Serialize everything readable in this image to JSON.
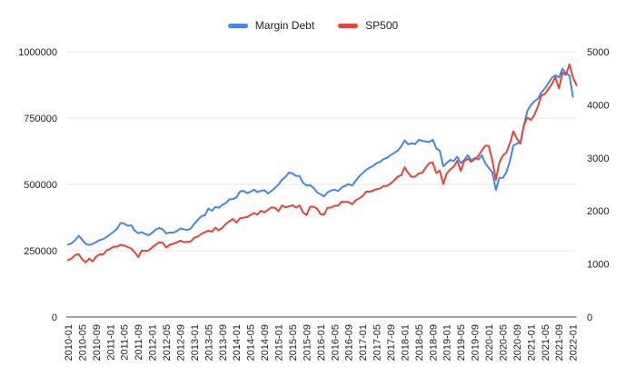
{
  "legend": {
    "items": [
      {
        "label": "Margin Debt",
        "color": "#4285F4"
      },
      {
        "label": "SP500",
        "color": "#EA4335"
      }
    ]
  },
  "colors": {
    "background": "#FFFFFF",
    "gridline": "#E6E6E6",
    "baseline": "#4A4A4A",
    "axis_text": "#212121",
    "margin_debt_line": "#4285F4",
    "sp500_line": "#EA4335"
  },
  "chart_data": {
    "type": "line",
    "title": "",
    "xlabel": "",
    "ylabel_left": "",
    "ylabel_right": "",
    "grid": "horizontal",
    "legend_position": "top",
    "x": [
      "2010-01",
      "2010-02",
      "2010-03",
      "2010-04",
      "2010-05",
      "2010-06",
      "2010-07",
      "2010-08",
      "2010-09",
      "2010-10",
      "2010-11",
      "2010-12",
      "2011-01",
      "2011-02",
      "2011-03",
      "2011-04",
      "2011-05",
      "2011-06",
      "2011-07",
      "2011-08",
      "2011-09",
      "2011-10",
      "2011-11",
      "2011-12",
      "2012-01",
      "2012-02",
      "2012-03",
      "2012-04",
      "2012-05",
      "2012-06",
      "2012-07",
      "2012-08",
      "2012-09",
      "2012-10",
      "2012-11",
      "2012-12",
      "2013-01",
      "2013-02",
      "2013-03",
      "2013-04",
      "2013-05",
      "2013-06",
      "2013-07",
      "2013-08",
      "2013-09",
      "2013-10",
      "2013-11",
      "2013-12",
      "2014-01",
      "2014-02",
      "2014-03",
      "2014-04",
      "2014-05",
      "2014-06",
      "2014-07",
      "2014-08",
      "2014-09",
      "2014-10",
      "2014-11",
      "2014-12",
      "2015-01",
      "2015-02",
      "2015-03",
      "2015-04",
      "2015-05",
      "2015-06",
      "2015-07",
      "2015-08",
      "2015-09",
      "2015-10",
      "2015-11",
      "2015-12",
      "2016-01",
      "2016-02",
      "2016-03",
      "2016-04",
      "2016-05",
      "2016-06",
      "2016-07",
      "2016-08",
      "2016-09",
      "2016-10",
      "2016-11",
      "2016-12",
      "2017-01",
      "2017-02",
      "2017-03",
      "2017-04",
      "2017-05",
      "2017-06",
      "2017-07",
      "2017-08",
      "2017-09",
      "2017-10",
      "2017-11",
      "2017-12",
      "2018-01",
      "2018-02",
      "2018-03",
      "2018-04",
      "2018-05",
      "2018-06",
      "2018-07",
      "2018-08",
      "2018-09",
      "2018-10",
      "2018-11",
      "2018-12",
      "2019-01",
      "2019-02",
      "2019-03",
      "2019-04",
      "2019-05",
      "2019-06",
      "2019-07",
      "2019-08",
      "2019-09",
      "2019-10",
      "2019-11",
      "2019-12",
      "2020-01",
      "2020-02",
      "2020-03",
      "2020-04",
      "2020-05",
      "2020-06",
      "2020-07",
      "2020-08",
      "2020-09",
      "2020-10",
      "2020-11",
      "2020-12",
      "2021-01",
      "2021-02",
      "2021-03",
      "2021-04",
      "2021-05",
      "2021-06",
      "2021-07",
      "2021-08",
      "2021-09",
      "2021-10",
      "2021-11",
      "2021-12",
      "2022-01",
      "2022-02"
    ],
    "x_tick_every": 4,
    "left_axis": {
      "min": 0,
      "max": 1000000,
      "tick_values": [
        0,
        250000,
        500000,
        750000,
        1000000
      ],
      "tick_labels": [
        "0",
        "250000",
        "500000",
        "750000",
        "1000000"
      ]
    },
    "right_axis": {
      "min": 0,
      "max": 5000,
      "tick_values": [
        0,
        1000,
        2000,
        3000,
        4000,
        5000
      ],
      "tick_labels": [
        "0",
        "1000",
        "2000",
        "3000",
        "4000",
        "5000"
      ]
    },
    "series": [
      {
        "name": "Margin Debt",
        "axis": "left",
        "color": "#4285F4",
        "values": [
          273000,
          278000,
          290000,
          306000,
          292000,
          276000,
          272000,
          276000,
          283000,
          290000,
          294000,
          302000,
          312000,
          322000,
          334000,
          355000,
          352000,
          344000,
          346000,
          326000,
          316000,
          320000,
          313000,
          308000,
          318000,
          330000,
          336000,
          330000,
          315000,
          319000,
          318000,
          324000,
          334000,
          331000,
          328000,
          334000,
          352000,
          366000,
          380000,
          384000,
          409000,
          401000,
          415000,
          412000,
          423000,
          430000,
          444000,
          445000,
          451000,
          473000,
          476000,
          467000,
          472000,
          480000,
          471000,
          476000,
          478000,
          466000,
          475000,
          487000,
          499000,
          518000,
          528000,
          545000,
          541000,
          532000,
          532000,
          506000,
          496000,
          498000,
          487000,
          470000,
          463000,
          455000,
          470000,
          477000,
          480000,
          475000,
          488000,
          495000,
          501000,
          496000,
          513000,
          530000,
          542000,
          555000,
          563000,
          570000,
          580000,
          585000,
          596000,
          600000,
          611000,
          619000,
          627000,
          643000,
          666000,
          651000,
          655000,
          652000,
          668000,
          664000,
          662000,
          660000,
          668000,
          636000,
          627000,
          568000,
          580000,
          592000,
          588000,
          604000,
          580000,
          592000,
          610000,
          590000,
          600000,
          594000,
          610000,
          579000,
          562000,
          545000,
          479000,
          525000,
          525000,
          546000,
          588000,
          646000,
          654000,
          659000,
          722000,
          778000,
          799000,
          814000,
          823000,
          847000,
          862000,
          882000,
          902000,
          911000,
          903000,
          936000,
          919000,
          911000,
          830000,
          null
        ]
      },
      {
        "name": "SP500",
        "axis": "right",
        "color": "#EA4335",
        "values": [
          1073.9,
          1104.5,
          1169.4,
          1186.7,
          1089.4,
          1030.7,
          1101.6,
          1049.3,
          1141.2,
          1183.3,
          1180.6,
          1257.6,
          1286.1,
          1327.2,
          1325.8,
          1363.6,
          1345.2,
          1320.6,
          1292.3,
          1218.9,
          1131.4,
          1253.3,
          1247.0,
          1257.6,
          1312.4,
          1365.7,
          1408.5,
          1397.9,
          1310.3,
          1362.2,
          1379.3,
          1406.6,
          1440.7,
          1412.2,
          1416.2,
          1426.2,
          1498.1,
          1514.7,
          1569.2,
          1597.6,
          1630.7,
          1606.3,
          1685.7,
          1633.0,
          1681.6,
          1756.5,
          1805.8,
          1848.4,
          1782.6,
          1859.5,
          1872.3,
          1884.0,
          1923.6,
          1960.2,
          1930.7,
          2003.4,
          1972.3,
          2018.1,
          2067.6,
          2058.9,
          1995.0,
          2104.5,
          2067.9,
          2085.5,
          2107.4,
          2063.1,
          2103.8,
          1972.2,
          1920.0,
          2079.4,
          2080.4,
          2043.9,
          1940.2,
          1932.2,
          2059.7,
          2065.3,
          2097.0,
          2098.9,
          2173.6,
          2171.0,
          2168.3,
          2126.2,
          2198.8,
          2238.8,
          2278.9,
          2363.6,
          2362.7,
          2384.2,
          2411.8,
          2423.4,
          2470.3,
          2471.7,
          2519.4,
          2575.3,
          2647.6,
          2673.6,
          2823.8,
          2713.8,
          2640.9,
          2648.1,
          2705.3,
          2718.4,
          2816.3,
          2901.5,
          2914.0,
          2711.7,
          2760.2,
          2506.9,
          2704.1,
          2784.5,
          2834.4,
          2945.8,
          2752.1,
          2941.8,
          2980.4,
          2926.5,
          2976.7,
          3037.6,
          3141.0,
          3230.8,
          3225.5,
          2954.2,
          2584.6,
          2912.4,
          3044.3,
          3100.3,
          3271.1,
          3500.3,
          3363.0,
          3270.0,
          3621.6,
          3756.1,
          3714.2,
          3811.2,
          3972.9,
          4181.2,
          4204.1,
          4297.5,
          4395.3,
          4522.7,
          4307.5,
          4605.4,
          4567.0,
          4766.2,
          4515.6,
          4374.0
        ]
      }
    ]
  }
}
